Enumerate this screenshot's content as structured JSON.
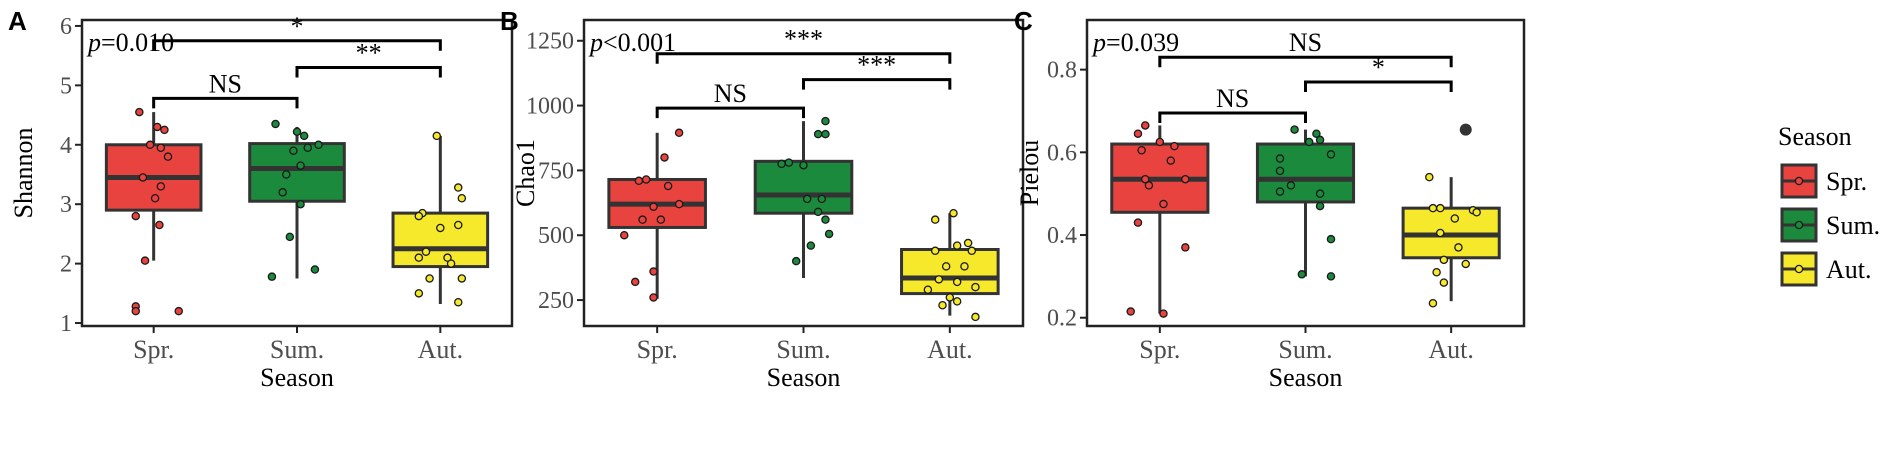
{
  "panels": [
    {
      "letter": "A",
      "chart_data": {
        "type": "box",
        "ylabel": "Shannon",
        "xlabel": "Season",
        "categories": [
          "Spr.",
          "Sum.",
          "Aut."
        ],
        "ylim": [
          0.95,
          6.1
        ],
        "yticks": [
          1,
          2,
          3,
          4,
          5,
          6
        ],
        "pvalue": {
          "prefix": "p",
          "text": "=0.010"
        },
        "boxes": [
          {
            "q1": 2.9,
            "median": 3.45,
            "q3": 4.0,
            "lower": 2.05,
            "upper": 4.55
          },
          {
            "q1": 3.05,
            "median": 3.6,
            "q3": 4.02,
            "lower": 1.75,
            "upper": 4.3
          },
          {
            "q1": 1.95,
            "median": 2.25,
            "q3": 2.85,
            "lower": 1.32,
            "upper": 4.15
          }
        ],
        "points": [
          [
            [
              -0.2,
              4.55
            ],
            [
              0.05,
              4.3
            ],
            [
              0.15,
              4.25
            ],
            [
              0.1,
              3.95
            ],
            [
              -0.05,
              4.0
            ],
            [
              0.2,
              3.8
            ],
            [
              -0.15,
              3.45
            ],
            [
              0.1,
              3.3
            ],
            [
              0.02,
              3.1
            ],
            [
              -0.25,
              2.8
            ],
            [
              0.08,
              2.65
            ],
            [
              -0.12,
              2.05
            ],
            [
              -0.25,
              1.28
            ],
            [
              -0.25,
              1.2
            ],
            [
              0.35,
              1.2
            ]
          ],
          [
            [
              -0.3,
              4.35
            ],
            [
              0.0,
              4.22
            ],
            [
              0.1,
              4.15
            ],
            [
              -0.05,
              3.9
            ],
            [
              0.3,
              4.0
            ],
            [
              0.15,
              3.95
            ],
            [
              0.05,
              3.65
            ],
            [
              -0.15,
              3.5
            ],
            [
              -0.2,
              3.2
            ],
            [
              0.05,
              3.0
            ],
            [
              -0.1,
              2.45
            ],
            [
              0.25,
              1.9
            ],
            [
              -0.35,
              1.78
            ]
          ],
          [
            [
              -0.05,
              4.15
            ],
            [
              0.25,
              3.28
            ],
            [
              0.3,
              3.1
            ],
            [
              -0.25,
              2.85
            ],
            [
              -0.3,
              2.8
            ],
            [
              0.0,
              2.6
            ],
            [
              0.25,
              2.65
            ],
            [
              -0.3,
              2.1
            ],
            [
              -0.2,
              2.2
            ],
            [
              0.15,
              2.0
            ],
            [
              0.1,
              2.1
            ],
            [
              0.3,
              1.75
            ],
            [
              -0.15,
              1.75
            ],
            [
              -0.3,
              1.5
            ],
            [
              0.25,
              1.35
            ]
          ]
        ],
        "brackets": [
          {
            "from": 0,
            "to": 2,
            "y": 5.75,
            "label": "*"
          },
          {
            "from": 1,
            "to": 2,
            "y": 5.3,
            "label": "**"
          },
          {
            "from": 0,
            "to": 1,
            "y": 4.78,
            "label": "NS"
          }
        ]
      }
    },
    {
      "letter": "B",
      "chart_data": {
        "type": "box",
        "ylabel": "Chao1",
        "xlabel": "Season",
        "categories": [
          "Spr.",
          "Sum.",
          "Aut."
        ],
        "ylim": [
          150,
          1330
        ],
        "yticks": [
          250,
          500,
          750,
          1000,
          1250
        ],
        "pvalue": {
          "prefix": "p",
          "text": "<0.001"
        },
        "boxes": [
          {
            "q1": 530,
            "median": 620,
            "q3": 715,
            "lower": 255,
            "upper": 895
          },
          {
            "q1": 585,
            "median": 655,
            "q3": 785,
            "lower": 335,
            "upper": 940
          },
          {
            "q1": 275,
            "median": 335,
            "q3": 445,
            "lower": 190,
            "upper": 585
          }
        ],
        "points": [
          [
            [
              0.3,
              895
            ],
            [
              0.1,
              800
            ],
            [
              -0.15,
              715
            ],
            [
              -0.25,
              710
            ],
            [
              0.15,
              690
            ],
            [
              -0.05,
              610
            ],
            [
              0.3,
              620
            ],
            [
              -0.2,
              560
            ],
            [
              0.05,
              560
            ],
            [
              -0.45,
              500
            ],
            [
              -0.05,
              360
            ],
            [
              -0.3,
              320
            ],
            [
              -0.05,
              260
            ]
          ],
          [
            [
              0.3,
              940
            ],
            [
              0.2,
              890
            ],
            [
              0.3,
              890
            ],
            [
              -0.3,
              775
            ],
            [
              -0.2,
              780
            ],
            [
              0.0,
              770
            ],
            [
              0.25,
              640
            ],
            [
              0.05,
              640
            ],
            [
              0.3,
              560
            ],
            [
              0.2,
              590
            ],
            [
              0.35,
              505
            ],
            [
              -0.1,
              400
            ],
            [
              0.1,
              460
            ]
          ],
          [
            [
              0.05,
              585
            ],
            [
              -0.2,
              560
            ],
            [
              0.25,
              470
            ],
            [
              0.1,
              460
            ],
            [
              -0.2,
              440
            ],
            [
              0.3,
              440
            ],
            [
              -0.05,
              380
            ],
            [
              0.2,
              380
            ],
            [
              -0.15,
              330
            ],
            [
              0.1,
              320
            ],
            [
              0.35,
              300
            ],
            [
              -0.3,
              290
            ],
            [
              0.0,
              260
            ],
            [
              0.1,
              245
            ],
            [
              -0.1,
              230
            ],
            [
              0.35,
              185
            ]
          ]
        ],
        "brackets": [
          {
            "from": 0,
            "to": 2,
            "y": 1200,
            "label": "***"
          },
          {
            "from": 1,
            "to": 2,
            "y": 1100,
            "label": "***"
          },
          {
            "from": 0,
            "to": 1,
            "y": 990,
            "label": "NS"
          }
        ]
      }
    },
    {
      "letter": "C",
      "chart_data": {
        "type": "box",
        "ylabel": "Pielou",
        "xlabel": "Season",
        "categories": [
          "Spr.",
          "Sum.",
          "Aut."
        ],
        "ylim": [
          0.18,
          0.92
        ],
        "yticks": [
          0.2,
          0.4,
          0.6,
          0.8
        ],
        "pvalue": {
          "prefix": "p",
          "text": "=0.039"
        },
        "boxes": [
          {
            "q1": 0.455,
            "median": 0.535,
            "q3": 0.62,
            "lower": 0.21,
            "upper": 0.665
          },
          {
            "q1": 0.48,
            "median": 0.535,
            "q3": 0.62,
            "lower": 0.3,
            "upper": 0.655
          },
          {
            "q1": 0.345,
            "median": 0.4,
            "q3": 0.465,
            "lower": 0.24,
            "upper": 0.54
          }
        ],
        "points": [
          [
            [
              -0.2,
              0.665
            ],
            [
              -0.3,
              0.645
            ],
            [
              0.0,
              0.625
            ],
            [
              0.2,
              0.615
            ],
            [
              -0.25,
              0.605
            ],
            [
              0.15,
              0.58
            ],
            [
              -0.2,
              0.535
            ],
            [
              -0.15,
              0.52
            ],
            [
              0.35,
              0.535
            ],
            [
              0.05,
              0.475
            ],
            [
              -0.3,
              0.43
            ],
            [
              0.35,
              0.37
            ],
            [
              -0.4,
              0.215
            ],
            [
              0.05,
              0.21
            ]
          ],
          [
            [
              -0.15,
              0.655
            ],
            [
              0.15,
              0.645
            ],
            [
              0.05,
              0.625
            ],
            [
              0.2,
              0.63
            ],
            [
              0.35,
              0.595
            ],
            [
              -0.35,
              0.585
            ],
            [
              -0.35,
              0.555
            ],
            [
              -0.2,
              0.52
            ],
            [
              0.2,
              0.5
            ],
            [
              -0.35,
              0.505
            ],
            [
              0.2,
              0.47
            ],
            [
              0.35,
              0.39
            ],
            [
              -0.05,
              0.305
            ],
            [
              0.35,
              0.3
            ]
          ],
          [
            [
              0.2,
              0.655
            ],
            [
              -0.3,
              0.54
            ],
            [
              -0.15,
              0.465
            ],
            [
              -0.25,
              0.465
            ],
            [
              0.3,
              0.46
            ],
            [
              0.05,
              0.44
            ],
            [
              0.35,
              0.455
            ],
            [
              -0.15,
              0.405
            ],
            [
              0.1,
              0.37
            ],
            [
              -0.1,
              0.34
            ],
            [
              0.2,
              0.33
            ],
            [
              -0.2,
              0.31
            ],
            [
              -0.1,
              0.285
            ],
            [
              -0.25,
              0.235
            ]
          ]
        ],
        "brackets": [
          {
            "from": 0,
            "to": 2,
            "y": 0.83,
            "label": "NS"
          },
          {
            "from": 1,
            "to": 2,
            "y": 0.77,
            "label": "*"
          },
          {
            "from": 0,
            "to": 1,
            "y": 0.695,
            "label": "NS"
          }
        ]
      }
    }
  ],
  "legend": {
    "title": "Season",
    "items": [
      {
        "label": "Spr.",
        "color": "#e8433f"
      },
      {
        "label": "Sum.",
        "color": "#1b8a3c"
      },
      {
        "label": "Aut.",
        "color": "#f6e92b"
      }
    ]
  },
  "colors": {
    "box_fill": [
      "#e8433f",
      "#1b8a3c",
      "#f6e92b"
    ],
    "box_stroke": "#333333",
    "point_fill": [
      "#e8433f",
      "#1b8a3c",
      "#f6e92b"
    ],
    "axis": "#222222",
    "tick_label": "#4d4d4d",
    "outlier": "#333333"
  }
}
